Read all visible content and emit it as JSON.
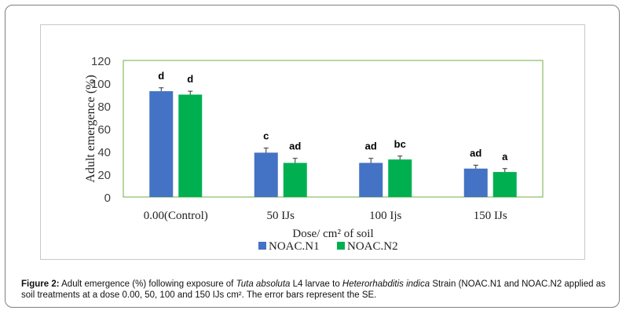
{
  "chart_data": {
    "type": "bar",
    "categories": [
      "0.00(Control)",
      "50 IJs",
      "100 Ijs",
      "150 IJs"
    ],
    "series": [
      {
        "name": "NOAC.N1",
        "color": "#4472c4",
        "values": [
          93,
          39,
          30,
          25
        ],
        "errors": [
          3,
          4,
          4,
          3
        ],
        "letters": [
          "d",
          "c",
          "ad",
          "ad"
        ]
      },
      {
        "name": "NOAC.N2",
        "color": "#00b050",
        "values": [
          90,
          30,
          33,
          22
        ],
        "errors": [
          3,
          4,
          3,
          3
        ],
        "letters": [
          "d",
          "ad",
          "bc",
          "a"
        ]
      }
    ],
    "yticks": [
      0,
      20,
      40,
      60,
      80,
      100,
      120
    ],
    "ylim": [
      0,
      120
    ],
    "ylabel": "Adult emergence (%)",
    "xlabel": "Dose/ cm² of soil",
    "legend_position": "bottom",
    "plot_border_color": "#70ad47"
  },
  "caption": {
    "label": "Figure 2:",
    "text_1": " Adult emergence (%) following exposure of ",
    "species_1": "Tuta absoluta",
    "text_2": " L4 larvae to ",
    "species_2": "Heterorhabditis indica",
    "text_3": " Strain (NOAC.N1 and NOAC.N2 applied as soil treatments at a dose 0.00, 50, 100 and 150 IJs cm². The error bars represent the SE."
  }
}
